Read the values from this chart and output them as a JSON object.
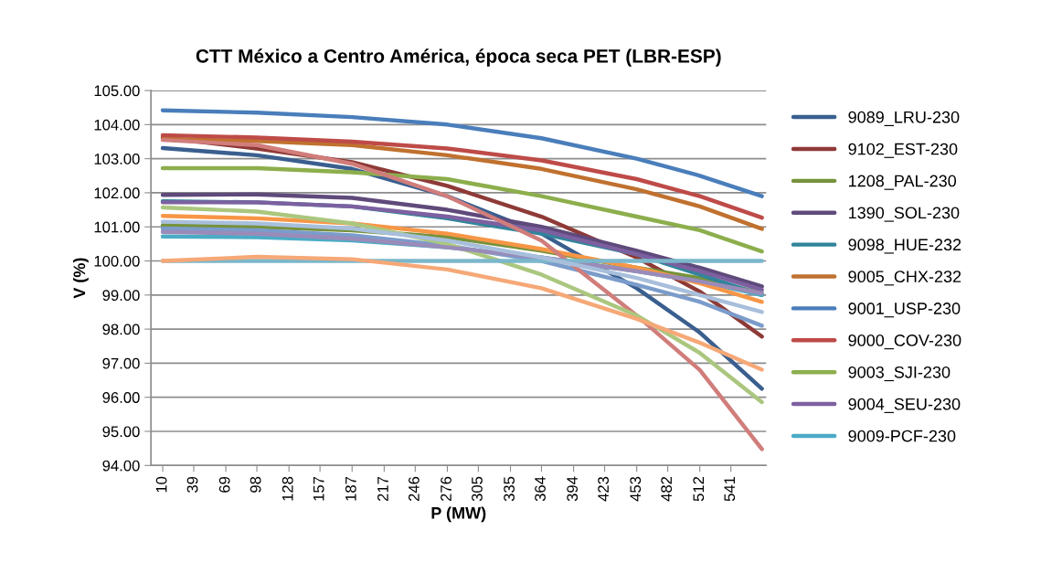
{
  "chart_data": {
    "type": "line",
    "title": "CTT México a Centro América, época seca PET (LBR-ESP)",
    "xlabel": "P (MW)",
    "ylabel": "V (%)",
    "x": [
      10,
      98,
      187,
      276,
      364,
      453,
      512,
      570
    ],
    "xlim": [
      -1,
      574
    ],
    "xticks": [
      10,
      39,
      69,
      98,
      128,
      157,
      187,
      217,
      246,
      276,
      305,
      335,
      364,
      394,
      423,
      453,
      482,
      512,
      541
    ],
    "ylim": [
      94,
      105
    ],
    "yticks": [
      {
        "value": 94,
        "label": "94.00"
      },
      {
        "value": 95,
        "label": "95.00"
      },
      {
        "value": 96,
        "label": "96.00"
      },
      {
        "value": 97,
        "label": "97.00"
      },
      {
        "value": 98,
        "label": "98.00"
      },
      {
        "value": 99,
        "label": "99.00"
      },
      {
        "value": 100,
        "label": "100.00"
      },
      {
        "value": 101,
        "label": "101.00"
      },
      {
        "value": 102,
        "label": "102.00"
      },
      {
        "value": 103,
        "label": "103.00"
      },
      {
        "value": 104,
        "label": "104.00"
      },
      {
        "value": 105,
        "label": "105.00"
      }
    ],
    "grid": "y",
    "legend": "right",
    "marker": "none",
    "line_style": "solid",
    "series": [
      {
        "name": "9089_LRU-230",
        "color": "#3a5f8f",
        "values": [
          103.31,
          103.1,
          102.7,
          101.9,
          100.8,
          99.2,
          97.9,
          96.25
        ]
      },
      {
        "name": "9102_EST-230",
        "color": "#8e3a37",
        "values": [
          103.62,
          103.3,
          102.9,
          102.2,
          101.3,
          100.1,
          99.1,
          97.78
        ]
      },
      {
        "name": "1208_PAL-230",
        "color": "#76923c",
        "values": [
          101.05,
          101.0,
          100.9,
          100.7,
          100.3,
          99.8,
          99.5,
          99.05
        ]
      },
      {
        "name": "1390_SOL-230",
        "color": "#5f4a7b",
        "values": [
          101.94,
          101.95,
          101.85,
          101.5,
          101.0,
          100.3,
          99.8,
          99.25
        ]
      },
      {
        "name": "9098_HUE-232",
        "color": "#31849b",
        "values": [
          101.75,
          101.72,
          101.6,
          101.25,
          100.8,
          100.2,
          99.6,
          99.0
        ]
      },
      {
        "name": "9005_CHX-232",
        "color": "#c0712f",
        "values": [
          103.58,
          103.52,
          103.4,
          103.1,
          102.7,
          102.1,
          101.6,
          100.94
        ]
      },
      {
        "name": "9001_USP-230",
        "color": "#4a7ebb",
        "values": [
          104.42,
          104.35,
          104.22,
          104.0,
          103.6,
          103.0,
          102.5,
          101.9
        ]
      },
      {
        "name": "9000_COV-230",
        "color": "#be4b48",
        "values": [
          103.69,
          103.62,
          103.5,
          103.3,
          102.95,
          102.4,
          101.9,
          101.27
        ]
      },
      {
        "name": "9003_SJI-230",
        "color": "#8cae4c",
        "values": [
          102.72,
          102.72,
          102.6,
          102.4,
          101.9,
          101.3,
          100.9,
          100.28
        ]
      },
      {
        "name": "9004_SEU-230",
        "color": "#7d60a0",
        "values": [
          101.72,
          101.72,
          101.6,
          101.3,
          100.9,
          100.2,
          99.7,
          99.15
        ]
      },
      {
        "name": "9009-PCF-230",
        "color": "#4bacc6",
        "values": [
          100.72,
          100.7,
          100.6,
          100.4,
          100.1,
          99.7,
          99.4,
          99.0
        ]
      },
      {
        "color": "#f79646",
        "values": [
          101.32,
          101.25,
          101.1,
          100.8,
          100.35,
          99.8,
          99.35,
          98.8
        ]
      },
      {
        "color": "#7b9ccb",
        "values": [
          100.95,
          100.9,
          100.75,
          100.45,
          100.0,
          99.3,
          98.8,
          98.1
        ]
      },
      {
        "color": "#d07d7b",
        "values": [
          103.55,
          103.4,
          102.85,
          101.9,
          100.6,
          98.4,
          96.8,
          94.48
        ]
      },
      {
        "color": "#abc77f",
        "values": [
          101.57,
          101.45,
          101.1,
          100.5,
          99.6,
          98.4,
          97.3,
          95.86
        ]
      },
      {
        "color": "#9a8bb8",
        "values": [
          100.85,
          100.8,
          100.65,
          100.4,
          100.1,
          99.7,
          99.4,
          99.05
        ]
      },
      {
        "color": "#7bb7cb",
        "values": [
          100.0,
          100.0,
          100.0,
          100.0,
          100.0,
          100.0,
          100.0,
          100.0
        ]
      },
      {
        "color": "#f6a877",
        "values": [
          100.0,
          100.12,
          100.05,
          99.75,
          99.2,
          98.3,
          97.6,
          96.81
        ]
      },
      {
        "color": "#a8bfdc",
        "values": [
          101.15,
          101.1,
          100.95,
          100.6,
          100.1,
          99.5,
          99.0,
          98.5
        ]
      }
    ]
  }
}
